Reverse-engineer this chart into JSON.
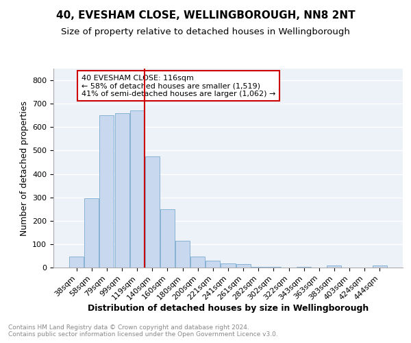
{
  "title1": "40, EVESHAM CLOSE, WELLINGBOROUGH, NN8 2NT",
  "title2": "Size of property relative to detached houses in Wellingborough",
  "xlabel": "Distribution of detached houses by size in Wellingborough",
  "ylabel": "Number of detached properties",
  "categories": [
    "38sqm",
    "58sqm",
    "79sqm",
    "99sqm",
    "119sqm",
    "140sqm",
    "160sqm",
    "180sqm",
    "200sqm",
    "221sqm",
    "241sqm",
    "261sqm",
    "282sqm",
    "302sqm",
    "322sqm",
    "343sqm",
    "363sqm",
    "383sqm",
    "403sqm",
    "424sqm",
    "444sqm"
  ],
  "values": [
    47,
    295,
    650,
    660,
    670,
    475,
    250,
    113,
    48,
    28,
    18,
    15,
    4,
    2,
    1,
    2,
    1,
    8,
    1,
    1,
    8
  ],
  "bar_color": "#c8d8ee",
  "bar_edge_color": "#7aaad0",
  "vline_x_index": 4,
  "vline_color": "#cc0000",
  "annotation_line1": "40 EVESHAM CLOSE: 116sqm",
  "annotation_line2": "← 58% of detached houses are smaller (1,519)",
  "annotation_line3": "41% of semi-detached houses are larger (1,062) →",
  "annotation_box_color": "#ffffff",
  "annotation_box_edge": "#cc0000",
  "footnote": "Contains HM Land Registry data © Crown copyright and database right 2024.\nContains public sector information licensed under the Open Government Licence v3.0.",
  "ylim": [
    0,
    850
  ],
  "yticks": [
    0,
    100,
    200,
    300,
    400,
    500,
    600,
    700,
    800
  ],
  "background_color": "#edf2f9",
  "grid_color": "#ffffff",
  "title1_fontsize": 11,
  "title2_fontsize": 9.5,
  "xlabel_fontsize": 9,
  "ylabel_fontsize": 9,
  "tick_fontsize": 8,
  "annotation_fontsize": 8,
  "footnote_fontsize": 6.5
}
